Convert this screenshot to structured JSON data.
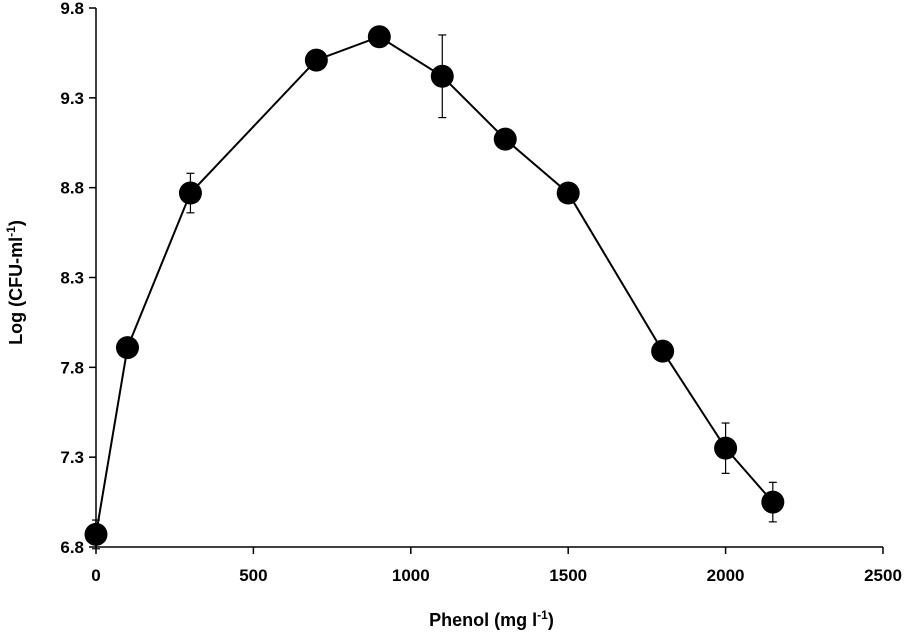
{
  "chart_data": {
    "type": "scatter",
    "title": "",
    "xlabel": {
      "main": "Phenol (mg l",
      "sup": "-1",
      "close": ")"
    },
    "ylabel": {
      "main": "Log (CFU-ml",
      "sup": "-1",
      "close": ")"
    },
    "xlim": [
      0,
      2500
    ],
    "ylim": [
      6.8,
      9.8
    ],
    "xticks": [
      0,
      500,
      1000,
      1500,
      2000,
      2500
    ],
    "xtick_labels": [
      "0",
      "500",
      "1000",
      "1500",
      "2000",
      "2500"
    ],
    "yticks": [
      6.8,
      7.3,
      7.8,
      8.3,
      8.8,
      9.3,
      9.8
    ],
    "ytick_labels": [
      "6.8",
      "7.3",
      "7.8",
      "8.3",
      "8.8",
      "9.3",
      "9.8"
    ],
    "grid": false,
    "legend": "none",
    "marker": "filled-circle",
    "line": "solid",
    "color": "#000000",
    "series": [
      {
        "x": [
          0,
          100,
          300,
          700,
          900,
          1100,
          1300,
          1500,
          1800,
          2000,
          2150
        ],
        "y": [
          6.87,
          7.91,
          8.77,
          9.51,
          9.64,
          9.42,
          9.07,
          8.77,
          7.89,
          7.35,
          7.05
        ],
        "error": [
          0.08,
          0,
          0.11,
          0,
          0,
          0.23,
          0,
          0,
          0,
          0.14,
          0.11
        ]
      }
    ]
  }
}
